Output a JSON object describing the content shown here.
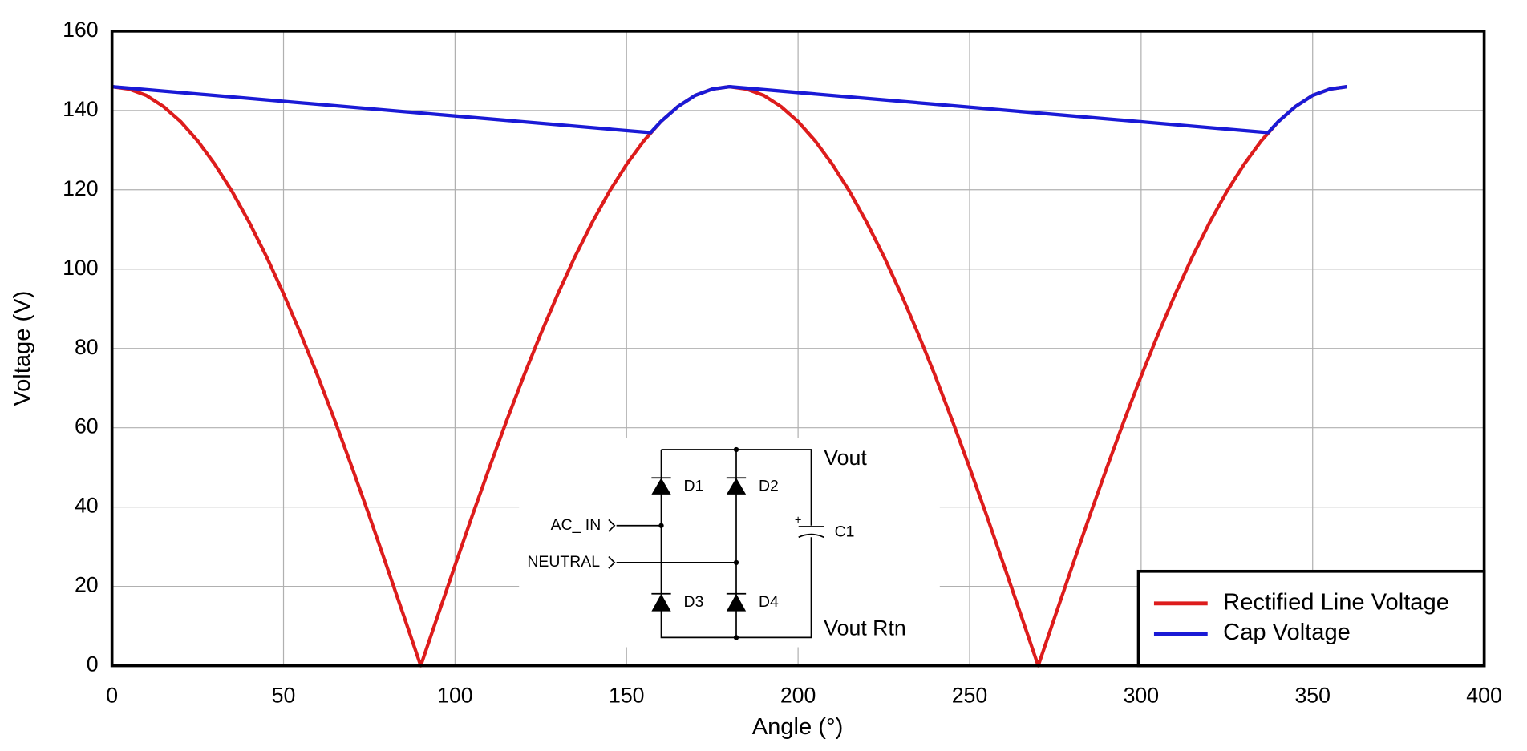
{
  "chart_data": {
    "type": "line",
    "x_label": "Angle (°)",
    "y_label": "Voltage (V)",
    "xlim": [
      0,
      400
    ],
    "xticks": [
      0,
      50,
      100,
      150,
      200,
      250,
      300,
      350,
      400
    ],
    "ylim": [
      0,
      160
    ],
    "yticks": [
      0,
      20,
      40,
      60,
      80,
      100,
      120,
      140,
      160
    ],
    "grid": true,
    "legend": "lower-right",
    "series": [
      {
        "name": "Rectified Line Voltage",
        "color": "#dd1c1c",
        "x": [
          0,
          5,
          10,
          15,
          20,
          25,
          30,
          35,
          40,
          45,
          50,
          55,
          60,
          65,
          70,
          75,
          80,
          85,
          90,
          95,
          100,
          105,
          110,
          115,
          120,
          125,
          130,
          135,
          140,
          145,
          150,
          155,
          160,
          165,
          170,
          175,
          180,
          185,
          190,
          195,
          200,
          205,
          210,
          215,
          220,
          225,
          230,
          235,
          240,
          245,
          250,
          255,
          260,
          265,
          270,
          275,
          280,
          285,
          290,
          295,
          300,
          305,
          310,
          315,
          320,
          325,
          330,
          335,
          340,
          345,
          350,
          355,
          360
        ],
        "values": [
          146,
          145.4,
          143.8,
          141.0,
          137.2,
          132.3,
          126.4,
          119.6,
          111.8,
          103.2,
          93.8,
          83.7,
          73.0,
          61.7,
          49.9,
          37.8,
          25.3,
          12.7,
          0,
          12.7,
          25.3,
          37.8,
          49.9,
          61.7,
          73.0,
          83.7,
          93.8,
          103.2,
          111.8,
          119.6,
          126.4,
          132.3,
          137.2,
          141.0,
          143.8,
          145.4,
          146,
          145.4,
          143.8,
          141.0,
          137.2,
          132.3,
          126.4,
          119.6,
          111.8,
          103.2,
          93.8,
          83.7,
          73.0,
          61.7,
          49.9,
          37.8,
          25.3,
          12.7,
          0,
          12.7,
          25.3,
          37.8,
          49.9,
          61.7,
          73.0,
          83.7,
          93.8,
          103.2,
          111.8,
          119.6,
          126.4,
          132.3,
          137.2,
          141.0,
          143.8,
          145.4,
          146
        ]
      },
      {
        "name": "Cap Voltage",
        "color": "#1a1ad6",
        "x": [
          0,
          157,
          160,
          165,
          170,
          175,
          180,
          337,
          340,
          345,
          350,
          355,
          360
        ],
        "values": [
          146,
          134.4,
          137.2,
          141.0,
          143.8,
          145.4,
          146,
          134.4,
          137.2,
          141.0,
          143.8,
          145.4,
          146
        ]
      }
    ],
    "inset": {
      "vout": "Vout",
      "vout_rtn": "Vout Rtn",
      "ac_in": "AC_ IN",
      "neutral": "NEUTRAL",
      "d1": "D1",
      "d2": "D2",
      "d3": "D3",
      "d4": "D4",
      "c1": "C1",
      "plus": "+"
    }
  }
}
